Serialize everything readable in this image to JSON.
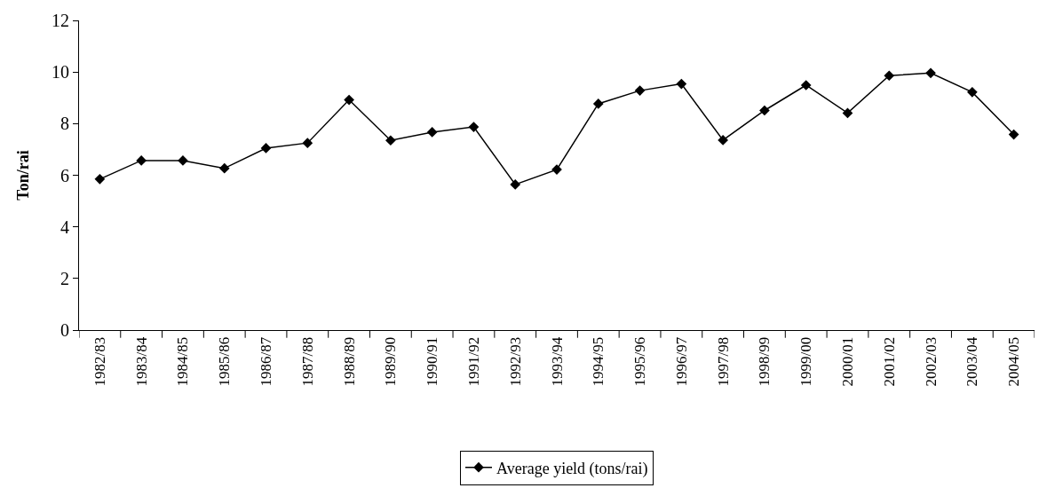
{
  "chart_data": {
    "type": "line",
    "ylabel": "Ton/rai",
    "categories": [
      "1982/83",
      "1983/84",
      "1984/85",
      "1985/86",
      "1986/87",
      "1987/88",
      "1988/89",
      "1989/90",
      "1990/91",
      "1991/92",
      "1992/93",
      "1993/94",
      "1994/95",
      "1995/96",
      "1996/97",
      "1997/98",
      "1998/99",
      "1999/00",
      "2000/01",
      "2001/02",
      "2002/03",
      "2003/04",
      "2004/05"
    ],
    "series": [
      {
        "name": "Average yield (tons/rai)",
        "color": "#000000",
        "values": [
          5.85,
          6.57,
          6.57,
          6.27,
          7.05,
          7.25,
          8.92,
          7.35,
          7.67,
          7.87,
          5.64,
          6.22,
          8.77,
          9.28,
          9.54,
          7.36,
          8.51,
          9.49,
          8.41,
          9.86,
          9.96,
          9.22,
          7.58
        ]
      }
    ],
    "ylim": [
      0,
      12
    ],
    "yticks": [
      0,
      2,
      4,
      6,
      8,
      10,
      12
    ],
    "grid": false,
    "legend": "bottom",
    "marker": "diamond",
    "line_style": "solid"
  }
}
